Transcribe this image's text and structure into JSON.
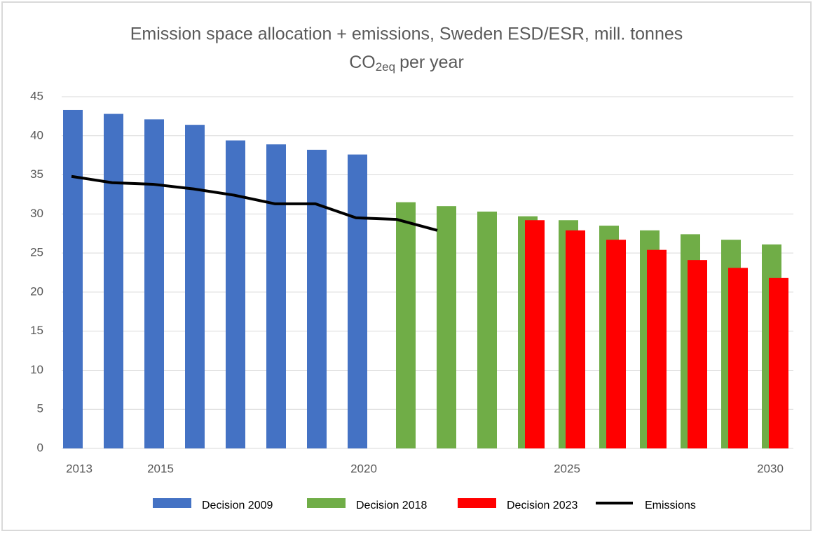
{
  "chart_data": {
    "type": "bar+line",
    "title": "Emission space allocation + emissions, Sweden ESD/ESR, mill. tonnes",
    "title_line2": {
      "text": "CO",
      "subscript": "2eq",
      "rest": "per year"
    },
    "categories": [
      "2013",
      null,
      "2015",
      null,
      null,
      null,
      null,
      "2020",
      null,
      null,
      null,
      null,
      "2025",
      null,
      null,
      null,
      null,
      "2030"
    ],
    "series": [
      {
        "name": "Decision 2009",
        "type": "bar",
        "color": "#4472c4",
        "values": [
          43.3,
          42.8,
          42.1,
          41.4,
          39.4,
          38.9,
          38.2,
          37.6,
          null,
          null,
          null,
          null,
          null,
          null,
          null,
          null,
          null,
          null
        ]
      },
      {
        "name": "Decision 2018",
        "type": "bar",
        "color": "#70ad47",
        "values": [
          null,
          null,
          null,
          null,
          null,
          null,
          null,
          null,
          31.5,
          31.0,
          30.3,
          29.7,
          29.2,
          28.5,
          27.9,
          27.4,
          26.7,
          26.1
        ]
      },
      {
        "name": "Decision 2023",
        "type": "bar",
        "color": "#ff0000",
        "values": [
          null,
          null,
          null,
          null,
          null,
          null,
          null,
          null,
          null,
          null,
          null,
          29.2,
          27.9,
          26.7,
          25.4,
          24.1,
          23.1,
          21.8
        ]
      },
      {
        "name": "Emissions",
        "type": "line",
        "color": "#000000",
        "values": [
          34.8,
          34.0,
          33.8,
          33.2,
          32.4,
          31.3,
          31.3,
          29.5,
          29.3,
          27.9,
          null,
          null,
          null,
          null,
          null,
          null,
          null,
          null
        ]
      }
    ],
    "ylim": [
      0,
      45
    ],
    "yticks": [
      0,
      5,
      10,
      15,
      20,
      25,
      30,
      35,
      40,
      45
    ],
    "grid": true,
    "legend": "bottom"
  }
}
